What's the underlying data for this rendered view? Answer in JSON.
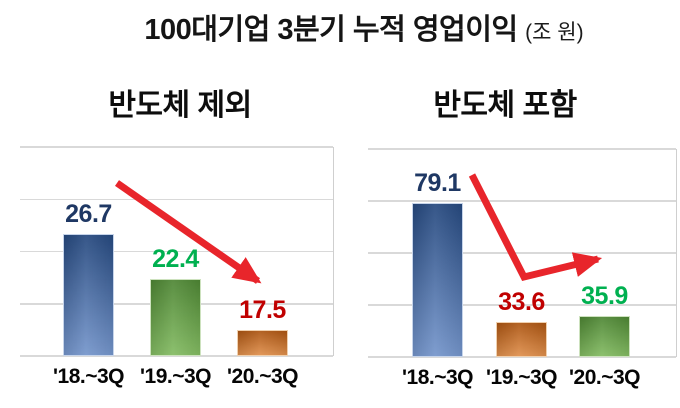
{
  "title": {
    "main": "100대기업 3분기 누적 영업이익",
    "unit": "(조 원)"
  },
  "chart_data": [
    {
      "type": "bar",
      "title": "반도체 제외",
      "categories": [
        "'18.~3Q",
        "'19.~3Q",
        "'20.~3Q"
      ],
      "values": [
        26.7,
        22.4,
        17.5
      ],
      "bar_color_names": [
        "blue",
        "green",
        "orange"
      ],
      "value_label_colors": [
        "#1F3864",
        "#00B050",
        "#C00000"
      ],
      "ylim": [
        15,
        35
      ],
      "gridline_step": 5,
      "grid": "horizontal",
      "legend": "none",
      "annotation": "red arrow sloping steadily down from above first bar to third bar"
    },
    {
      "type": "bar",
      "title": "반도체 포함",
      "categories": [
        "'18.~3Q",
        "'19.~3Q",
        "'20.~3Q"
      ],
      "values": [
        79.1,
        33.6,
        35.9
      ],
      "bar_color_names": [
        "blue",
        "orange",
        "green"
      ],
      "value_label_colors": [
        "#1F3864",
        "#C00000",
        "#00B050"
      ],
      "ylim": [
        20,
        100
      ],
      "gridline_step": 20,
      "grid": "horizontal",
      "legend": "none",
      "annotation": "red arrow falling steeply from first bar then rising slightly toward third bar"
    }
  ],
  "style": {
    "arrow_red": "#E8252B",
    "gridline_color": "#D9D9D9",
    "bar_gradients": {
      "blue": [
        "#26497F",
        "#7495CB"
      ],
      "green": [
        "#4E8634",
        "#83BB62"
      ],
      "orange": [
        "#AC5512",
        "#DF8F4C"
      ]
    },
    "bar_borders": {
      "blue": "#C6D4EA",
      "green": "#CDE2BE",
      "orange": "#F0D0AE"
    }
  }
}
